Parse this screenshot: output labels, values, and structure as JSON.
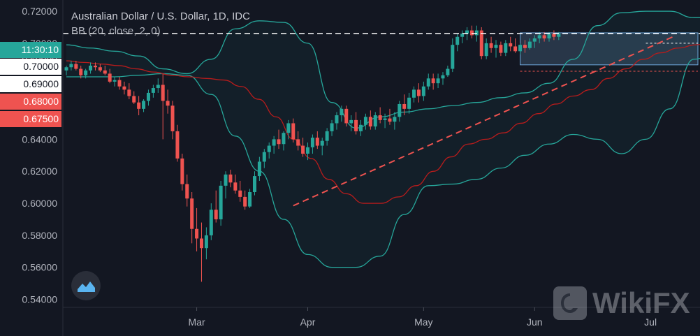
{
  "legend": {
    "title": "Australian Dollar / U.S. Dollar, 1D, IDC",
    "indicator": "BB (20, close, 2, 0)"
  },
  "price_tags": [
    {
      "label": "11:30:10",
      "bg": "#26a69a",
      "fg": "#ffffff"
    },
    {
      "label": "0.70000",
      "bg": "#ffffff",
      "fg": "#131722"
    },
    {
      "label": "0.69000",
      "bg": "#ffffff",
      "fg": "#131722"
    },
    {
      "label": "0.68000",
      "bg": "#ef5350",
      "fg": "#ffffff"
    },
    {
      "label": "0.67500",
      "bg": "#ef5350",
      "fg": "#ffffff"
    }
  ],
  "watermark": {
    "text": "WikiFX"
  },
  "chart_data": {
    "type": "candlestick",
    "title": "Australian Dollar / U.S. Dollar, 1D, IDC",
    "indicator": "BB (20, close, 2, 0)",
    "ylim": [
      0.535,
      0.727
    ],
    "y_ticks": [
      "0.72000",
      "0.70000",
      "0.69000",
      "0.64000",
      "0.62000",
      "0.60000",
      "0.58000",
      "0.56000",
      "0.54000"
    ],
    "y_tick_values": [
      0.72,
      0.7,
      0.69,
      0.64,
      0.62,
      0.6,
      0.58,
      0.56,
      0.54
    ],
    "x_labels": [
      "Mar",
      "Apr",
      "May",
      "Jun",
      "Jul"
    ],
    "x_label_index": [
      27,
      50,
      74,
      97,
      121
    ],
    "colors": {
      "up": "#26a69a",
      "down": "#ef5350",
      "band": "#26a69a",
      "basis": "#b71c1c",
      "trend": "#ef5350"
    },
    "current_price": 0.706,
    "zone": {
      "from_index": 94,
      "to_index": 131,
      "low": 0.6865,
      "high": 0.7065
    },
    "zone_midline": 0.7,
    "dotted_level": 0.6825,
    "trendline": {
      "x1": 47,
      "y1": 0.5985,
      "x2": 126,
      "y2": 0.7045
    },
    "candles": [
      [
        0.683,
        0.686,
        0.68,
        0.685
      ],
      [
        0.685,
        0.689,
        0.683,
        0.687
      ],
      [
        0.687,
        0.689,
        0.683,
        0.684
      ],
      [
        0.684,
        0.686,
        0.678,
        0.68
      ],
      [
        0.68,
        0.684,
        0.678,
        0.683
      ],
      [
        0.683,
        0.688,
        0.681,
        0.686
      ],
      [
        0.686,
        0.688,
        0.683,
        0.685
      ],
      [
        0.685,
        0.687,
        0.682,
        0.683
      ],
      [
        0.683,
        0.686,
        0.68,
        0.681
      ],
      [
        0.681,
        0.684,
        0.675,
        0.676
      ],
      [
        0.676,
        0.679,
        0.673,
        0.677
      ],
      [
        0.677,
        0.679,
        0.671,
        0.673
      ],
      [
        0.673,
        0.676,
        0.668,
        0.671
      ],
      [
        0.671,
        0.675,
        0.665,
        0.667
      ],
      [
        0.667,
        0.67,
        0.662,
        0.663
      ],
      [
        0.663,
        0.667,
        0.655,
        0.659
      ],
      [
        0.659,
        0.665,
        0.657,
        0.664
      ],
      [
        0.664,
        0.671,
        0.661,
        0.669
      ],
      [
        0.669,
        0.674,
        0.666,
        0.672
      ],
      [
        0.672,
        0.678,
        0.669,
        0.674
      ],
      [
        0.674,
        0.681,
        0.64,
        0.664
      ],
      [
        0.664,
        0.671,
        0.656,
        0.661
      ],
      [
        0.661,
        0.664,
        0.64,
        0.645
      ],
      [
        0.645,
        0.649,
        0.626,
        0.628
      ],
      [
        0.628,
        0.631,
        0.608,
        0.612
      ],
      [
        0.612,
        0.618,
        0.598,
        0.603
      ],
      [
        0.603,
        0.607,
        0.575,
        0.584
      ],
      [
        0.584,
        0.597,
        0.57,
        0.578
      ],
      [
        0.578,
        0.588,
        0.551,
        0.572
      ],
      [
        0.572,
        0.585,
        0.565,
        0.58
      ],
      [
        0.58,
        0.6,
        0.577,
        0.596
      ],
      [
        0.596,
        0.608,
        0.588,
        0.59
      ],
      [
        0.59,
        0.614,
        0.586,
        0.611
      ],
      [
        0.611,
        0.62,
        0.603,
        0.618
      ],
      [
        0.618,
        0.621,
        0.61,
        0.613
      ],
      [
        0.613,
        0.618,
        0.606,
        0.608
      ],
      [
        0.608,
        0.614,
        0.601,
        0.604
      ],
      [
        0.604,
        0.608,
        0.596,
        0.598
      ],
      [
        0.598,
        0.609,
        0.597,
        0.607
      ],
      [
        0.607,
        0.62,
        0.605,
        0.617
      ],
      [
        0.617,
        0.629,
        0.614,
        0.626
      ],
      [
        0.626,
        0.634,
        0.622,
        0.632
      ],
      [
        0.632,
        0.638,
        0.628,
        0.636
      ],
      [
        0.636,
        0.642,
        0.631,
        0.64
      ],
      [
        0.64,
        0.646,
        0.634,
        0.637
      ],
      [
        0.637,
        0.645,
        0.633,
        0.644
      ],
      [
        0.644,
        0.652,
        0.64,
        0.65
      ],
      [
        0.65,
        0.653,
        0.638,
        0.64
      ],
      [
        0.64,
        0.645,
        0.633,
        0.636
      ],
      [
        0.636,
        0.641,
        0.629,
        0.631
      ],
      [
        0.631,
        0.638,
        0.627,
        0.635
      ],
      [
        0.635,
        0.643,
        0.631,
        0.641
      ],
      [
        0.641,
        0.645,
        0.634,
        0.636
      ],
      [
        0.636,
        0.641,
        0.63,
        0.639
      ],
      [
        0.639,
        0.647,
        0.636,
        0.645
      ],
      [
        0.645,
        0.652,
        0.642,
        0.65
      ],
      [
        0.65,
        0.657,
        0.646,
        0.655
      ],
      [
        0.655,
        0.661,
        0.651,
        0.659
      ],
      [
        0.659,
        0.661,
        0.648,
        0.65
      ],
      [
        0.65,
        0.655,
        0.645,
        0.652
      ],
      [
        0.652,
        0.657,
        0.643,
        0.645
      ],
      [
        0.645,
        0.652,
        0.642,
        0.649
      ],
      [
        0.649,
        0.656,
        0.646,
        0.654
      ],
      [
        0.654,
        0.658,
        0.646,
        0.648
      ],
      [
        0.648,
        0.657,
        0.646,
        0.655
      ],
      [
        0.655,
        0.66,
        0.65,
        0.652
      ],
      [
        0.652,
        0.656,
        0.647,
        0.653
      ],
      [
        0.653,
        0.659,
        0.649,
        0.651
      ],
      [
        0.651,
        0.657,
        0.646,
        0.654
      ],
      [
        0.654,
        0.664,
        0.651,
        0.662
      ],
      [
        0.662,
        0.668,
        0.655,
        0.659
      ],
      [
        0.659,
        0.669,
        0.656,
        0.666
      ],
      [
        0.666,
        0.673,
        0.663,
        0.671
      ],
      [
        0.671,
        0.675,
        0.663,
        0.667
      ],
      [
        0.667,
        0.676,
        0.664,
        0.673
      ],
      [
        0.673,
        0.681,
        0.671,
        0.678
      ],
      [
        0.678,
        0.681,
        0.671,
        0.675
      ],
      [
        0.675,
        0.681,
        0.672,
        0.678
      ],
      [
        0.678,
        0.682,
        0.674,
        0.68
      ],
      [
        0.68,
        0.686,
        0.679,
        0.684
      ],
      [
        0.684,
        0.703,
        0.682,
        0.699
      ],
      [
        0.699,
        0.706,
        0.695,
        0.704
      ],
      [
        0.704,
        0.708,
        0.7,
        0.706
      ],
      [
        0.706,
        0.71,
        0.702,
        0.708
      ],
      [
        0.708,
        0.711,
        0.703,
        0.705
      ],
      [
        0.705,
        0.711,
        0.701,
        0.708
      ],
      [
        0.708,
        0.71,
        0.69,
        0.692
      ],
      [
        0.692,
        0.703,
        0.69,
        0.7
      ],
      [
        0.7,
        0.704,
        0.694,
        0.697
      ],
      [
        0.697,
        0.702,
        0.691,
        0.699
      ],
      [
        0.699,
        0.701,
        0.692,
        0.694
      ],
      [
        0.694,
        0.702,
        0.692,
        0.7
      ],
      [
        0.7,
        0.704,
        0.695,
        0.698
      ],
      [
        0.698,
        0.703,
        0.694,
        0.695
      ],
      [
        0.695,
        0.7,
        0.693,
        0.699
      ],
      [
        0.699,
        0.702,
        0.694,
        0.697
      ],
      [
        0.697,
        0.703,
        0.696,
        0.701
      ],
      [
        0.701,
        0.705,
        0.697,
        0.703
      ],
      [
        0.703,
        0.707,
        0.7,
        0.705
      ],
      [
        0.705,
        0.707,
        0.701,
        0.703
      ],
      [
        0.703,
        0.707,
        0.701,
        0.706
      ],
      [
        0.706,
        0.708,
        0.702,
        0.704
      ],
      [
        0.704,
        0.707,
        0.702,
        0.706
      ]
    ],
    "bb_index": [
      0,
      5,
      10,
      15,
      20,
      25,
      30,
      35,
      40,
      45,
      50,
      55,
      60,
      65,
      70,
      75,
      80,
      85,
      90,
      95,
      100,
      105,
      110,
      115,
      120,
      125,
      130,
      134
    ],
    "bb_upper": [
      0.699,
      0.697,
      0.695,
      0.692,
      0.684,
      0.681,
      0.69,
      0.709,
      0.714,
      0.713,
      0.7,
      0.663,
      0.647,
      0.654,
      0.657,
      0.659,
      0.661,
      0.663,
      0.666,
      0.669,
      0.675,
      0.69,
      0.711,
      0.719,
      0.72,
      0.72,
      0.716,
      0.716
    ],
    "bb_basis": [
      0.689,
      0.688,
      0.687,
      0.686,
      0.684,
      0.682,
      0.68,
      0.679,
      0.678,
      0.677,
      0.673,
      0.665,
      0.654,
      0.64,
      0.628,
      0.615,
      0.606,
      0.6,
      0.6,
      0.604,
      0.611,
      0.62,
      0.629,
      0.637,
      0.64,
      0.644,
      0.65,
      0.656,
      0.662,
      0.667,
      0.671,
      0.678,
      0.684,
      0.69,
      0.694,
      0.697,
      0.699,
      0.701
    ],
    "bb_lower": [
      0.679,
      0.679,
      0.679,
      0.68,
      0.681,
      0.68,
      0.668,
      0.642,
      0.62,
      0.59,
      0.568,
      0.56,
      0.56,
      0.567,
      0.593,
      0.611,
      0.612,
      0.615,
      0.622,
      0.63,
      0.637,
      0.643,
      0.64,
      0.631,
      0.64,
      0.659,
      0.69,
      0.693
    ]
  }
}
